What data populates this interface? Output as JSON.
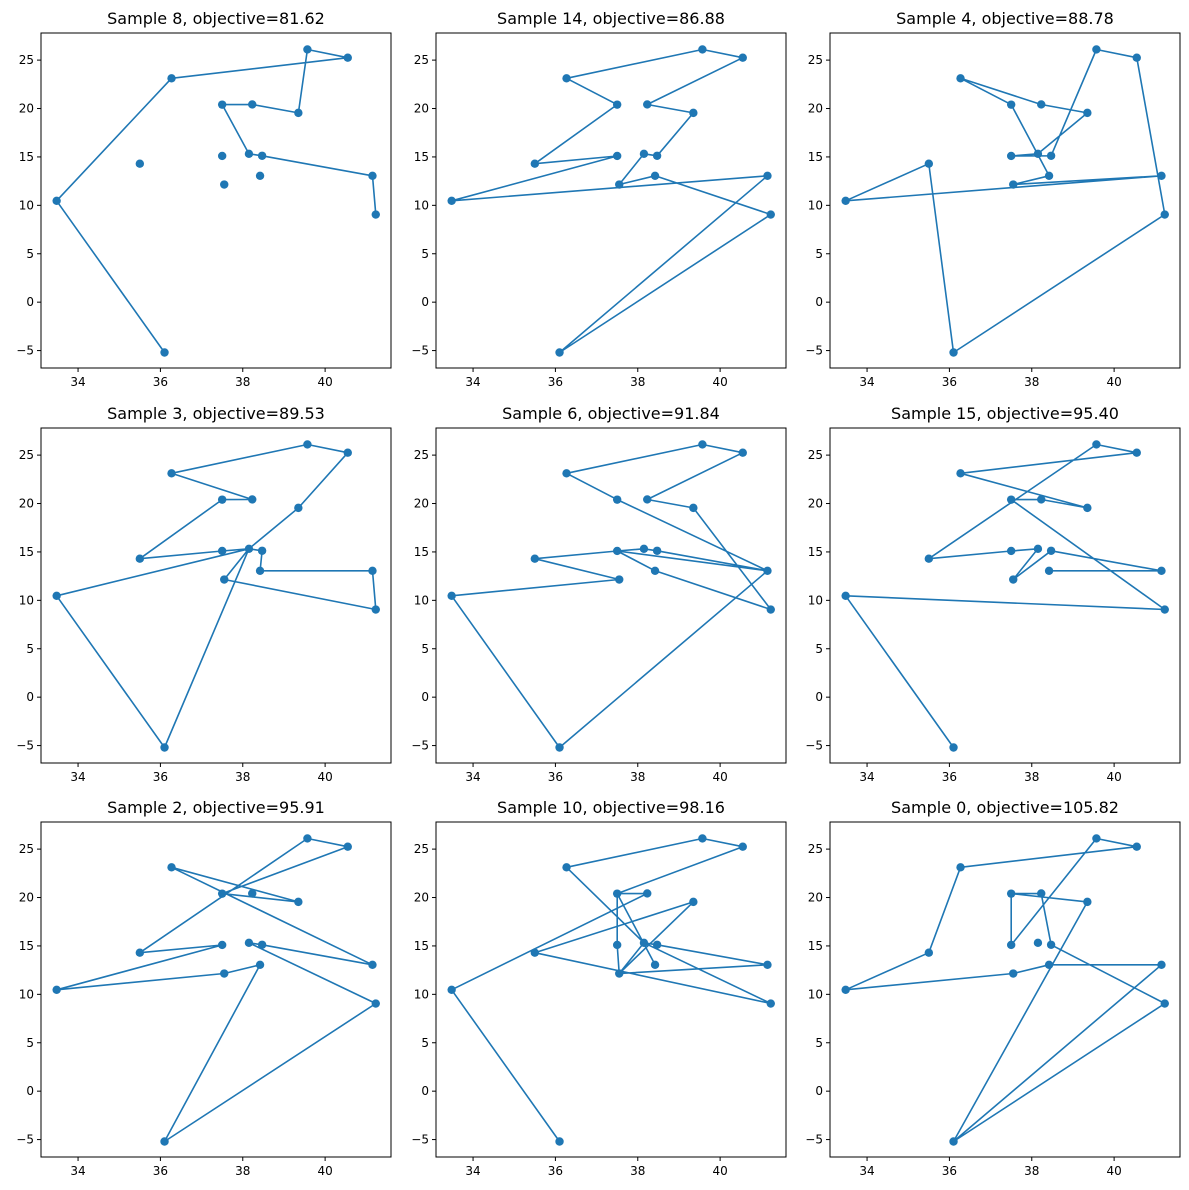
{
  "colors": {
    "series": "#1f77b4",
    "axes": "#000000",
    "background": "#ffffff"
  },
  "chart_data": {
    "type": "line",
    "markers": "circle",
    "grid": false,
    "legend": "none",
    "xlim": [
      33.1,
      41.6
    ],
    "ylim": [
      -6.8,
      27.8
    ],
    "xticks": [
      34,
      36,
      38,
      40
    ],
    "yticks": [
      -5,
      0,
      5,
      10,
      15,
      20,
      25
    ],
    "xtick_labels": [
      "34",
      "36",
      "38",
      "40"
    ],
    "ytick_labels": [
      "−5",
      "0",
      "5",
      "10",
      "15",
      "20",
      "25"
    ],
    "cities": [
      {
        "x": 33.48,
        "y": 10.47
      },
      {
        "x": 35.5,
        "y": 14.3
      },
      {
        "x": 36.1,
        "y": -5.2
      },
      {
        "x": 36.27,
        "y": 23.12
      },
      {
        "x": 37.5,
        "y": 20.4
      },
      {
        "x": 37.5,
        "y": 15.1
      },
      {
        "x": 37.55,
        "y": 12.15
      },
      {
        "x": 38.15,
        "y": 15.32
      },
      {
        "x": 38.23,
        "y": 20.42
      },
      {
        "x": 38.42,
        "y": 13.05
      },
      {
        "x": 38.47,
        "y": 15.12
      },
      {
        "x": 39.35,
        "y": 19.55
      },
      {
        "x": 39.57,
        "y": 26.1
      },
      {
        "x": 40.55,
        "y": 25.25
      },
      {
        "x": 41.15,
        "y": 13.05
      },
      {
        "x": 41.23,
        "y": 9.05
      }
    ],
    "subplots": [
      {
        "title": "Sample 8, objective=81.62",
        "route": [
          2,
          0,
          3,
          13,
          12,
          11,
          8,
          4,
          7,
          10,
          14,
          15
        ]
      },
      {
        "title": "Sample 14, objective=86.88",
        "route": [
          2,
          15,
          9,
          6,
          7,
          10,
          11,
          8,
          13,
          12,
          3,
          4,
          1,
          5,
          0,
          14,
          2
        ]
      },
      {
        "title": "Sample 4, objective=88.78",
        "route": [
          2,
          1,
          0,
          14,
          6,
          9,
          4,
          3,
          8,
          11,
          7,
          5,
          10,
          12,
          13,
          15,
          2
        ]
      },
      {
        "title": "Sample 3, objective=89.53",
        "route": [
          2,
          0,
          7,
          5,
          1,
          4,
          8,
          3,
          12,
          13,
          11,
          7,
          10,
          9,
          14,
          15,
          6,
          7,
          2
        ]
      },
      {
        "title": "Sample 6, objective=91.84",
        "route": [
          2,
          14,
          10,
          7,
          5,
          9,
          15,
          11,
          8,
          13,
          12,
          3,
          4,
          14,
          5,
          1,
          6,
          0,
          2
        ]
      },
      {
        "title": "Sample 15, objective=95.40",
        "route": [
          2,
          0,
          15,
          4,
          8,
          11,
          3,
          13,
          12,
          1,
          5,
          7,
          6,
          10,
          14,
          9
        ]
      },
      {
        "title": "Sample 2, objective=95.91",
        "route": [
          2,
          15,
          7,
          10,
          14,
          3,
          11,
          4,
          13,
          12,
          1,
          5,
          0,
          6,
          9,
          2
        ]
      },
      {
        "title": "Sample 10, objective=98.16",
        "route": [
          2,
          0,
          8,
          4,
          5,
          6,
          11,
          1,
          15,
          7,
          10,
          14,
          6,
          7,
          3,
          12,
          13,
          4,
          9
        ]
      },
      {
        "title": "Sample 0, objective=105.82",
        "route": [
          2,
          14,
          9,
          6,
          0,
          1,
          3,
          13,
          12,
          5,
          4,
          8,
          10,
          15,
          2,
          11,
          4
        ]
      }
    ]
  }
}
